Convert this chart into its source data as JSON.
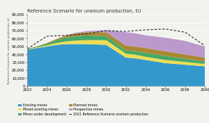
{
  "title": "Reference Scenario for uranium production, tU",
  "ylabel": "Reference Scenario for uranium production, tU",
  "years": [
    2022,
    2023,
    2024,
    2025,
    2026,
    2027,
    2028,
    2029,
    2030,
    2031,
    2032,
    2033,
    2034,
    2035,
    2036,
    2037,
    2038,
    2039,
    2040
  ],
  "existing_mines": [
    46000,
    48000,
    50000,
    52000,
    53000,
    53000,
    53000,
    52500,
    52000,
    44000,
    36000,
    35000,
    33000,
    31000,
    29000,
    28000,
    27000,
    26000,
    25000
  ],
  "mines_under_development": [
    500,
    1000,
    2000,
    3500,
    5000,
    5500,
    6000,
    5500,
    5000,
    4500,
    4000,
    4500,
    5000,
    5000,
    5000,
    4500,
    4000,
    3500,
    3000
  ],
  "mined_existing_mines": [
    500,
    800,
    1500,
    2500,
    3500,
    4500,
    5000,
    5500,
    6000,
    5500,
    5000,
    4500,
    4000,
    4000,
    4000,
    3800,
    3500,
    3200,
    3000
  ],
  "planned_mines": [
    200,
    400,
    800,
    1500,
    2500,
    3500,
    4000,
    4500,
    5000,
    5500,
    6000,
    6000,
    6000,
    6000,
    6000,
    5800,
    5500,
    5200,
    5000
  ],
  "prospective_mines": [
    0,
    0,
    0,
    0,
    500,
    1000,
    1500,
    2000,
    2500,
    10000,
    17000,
    16500,
    16000,
    16500,
    17000,
    17000,
    17000,
    15500,
    14000
  ],
  "ref_scenario_2021": [
    47000,
    55000,
    63000,
    63500,
    64000,
    65000,
    66000,
    68000,
    70000,
    69500,
    69000,
    70000,
    71000,
    71500,
    72000,
    70000,
    68000,
    59500,
    51000
  ],
  "ylim": [
    0,
    90000
  ],
  "yticks": [
    0,
    10000,
    20000,
    30000,
    40000,
    50000,
    60000,
    70000,
    80000,
    90000
  ],
  "ytick_labels": [
    "0",
    "10,000",
    "20,000",
    "30,000",
    "40,000",
    "50,000",
    "60,000",
    "70,000",
    "80,000",
    "90,000"
  ],
  "color_existing": "#3399cc",
  "color_under_dev": "#44aa66",
  "color_mined_existing": "#eedd55",
  "color_planned": "#aa8833",
  "color_prospective": "#bb99cc",
  "color_dashed": "#222222",
  "bg_color": "#f2f2ee"
}
